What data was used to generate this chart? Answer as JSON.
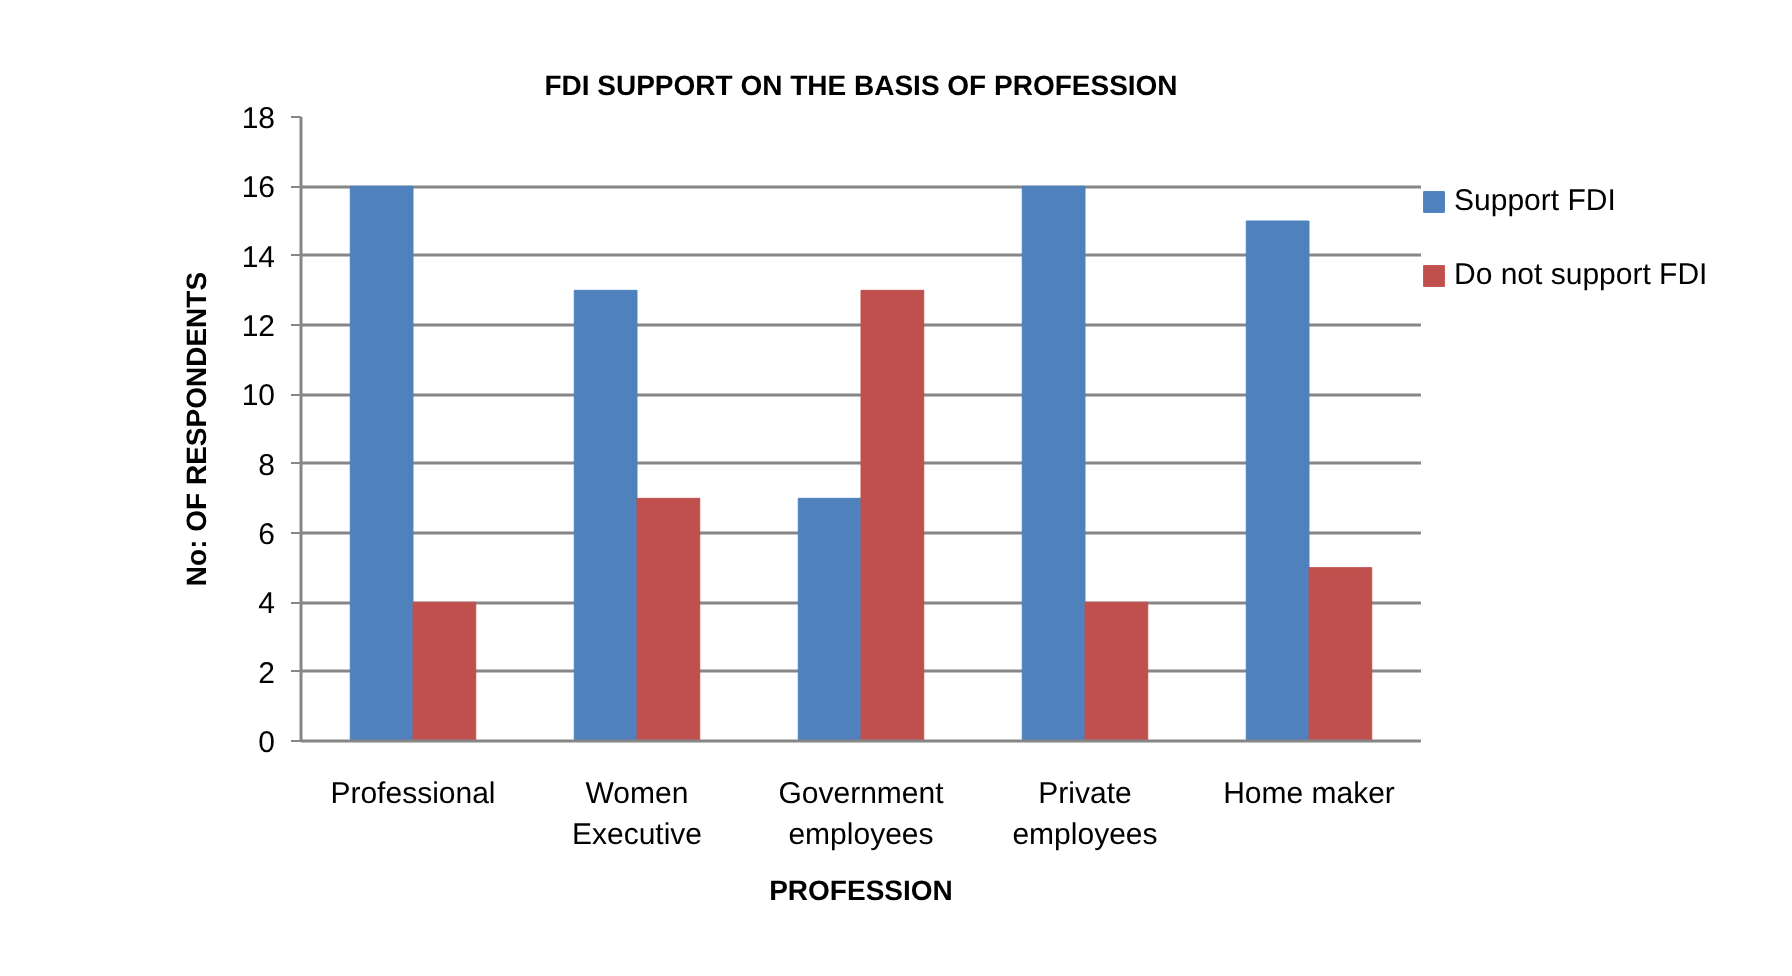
{
  "chart_data": {
    "type": "bar",
    "title": "FDI SUPPORT ON THE BASIS OF PROFESSION",
    "xlabel": "PROFESSION",
    "ylabel": "No: OF RESPONDENTS",
    "categories": [
      "Professional",
      "Women Executive",
      "Government employees",
      "Private employees",
      "Home maker"
    ],
    "series": [
      {
        "name": "Support FDI",
        "color": "#4f81bd",
        "values": [
          16,
          13,
          7,
          16,
          15
        ]
      },
      {
        "name": "Do not support FDI",
        "color": "#c0504d",
        "values": [
          4,
          7,
          13,
          4,
          5
        ]
      }
    ],
    "ylim": [
      0,
      18
    ],
    "yticks": [
      0,
      2,
      4,
      6,
      8,
      10,
      12,
      14,
      16,
      18
    ],
    "grid": "y",
    "legend": "right"
  }
}
